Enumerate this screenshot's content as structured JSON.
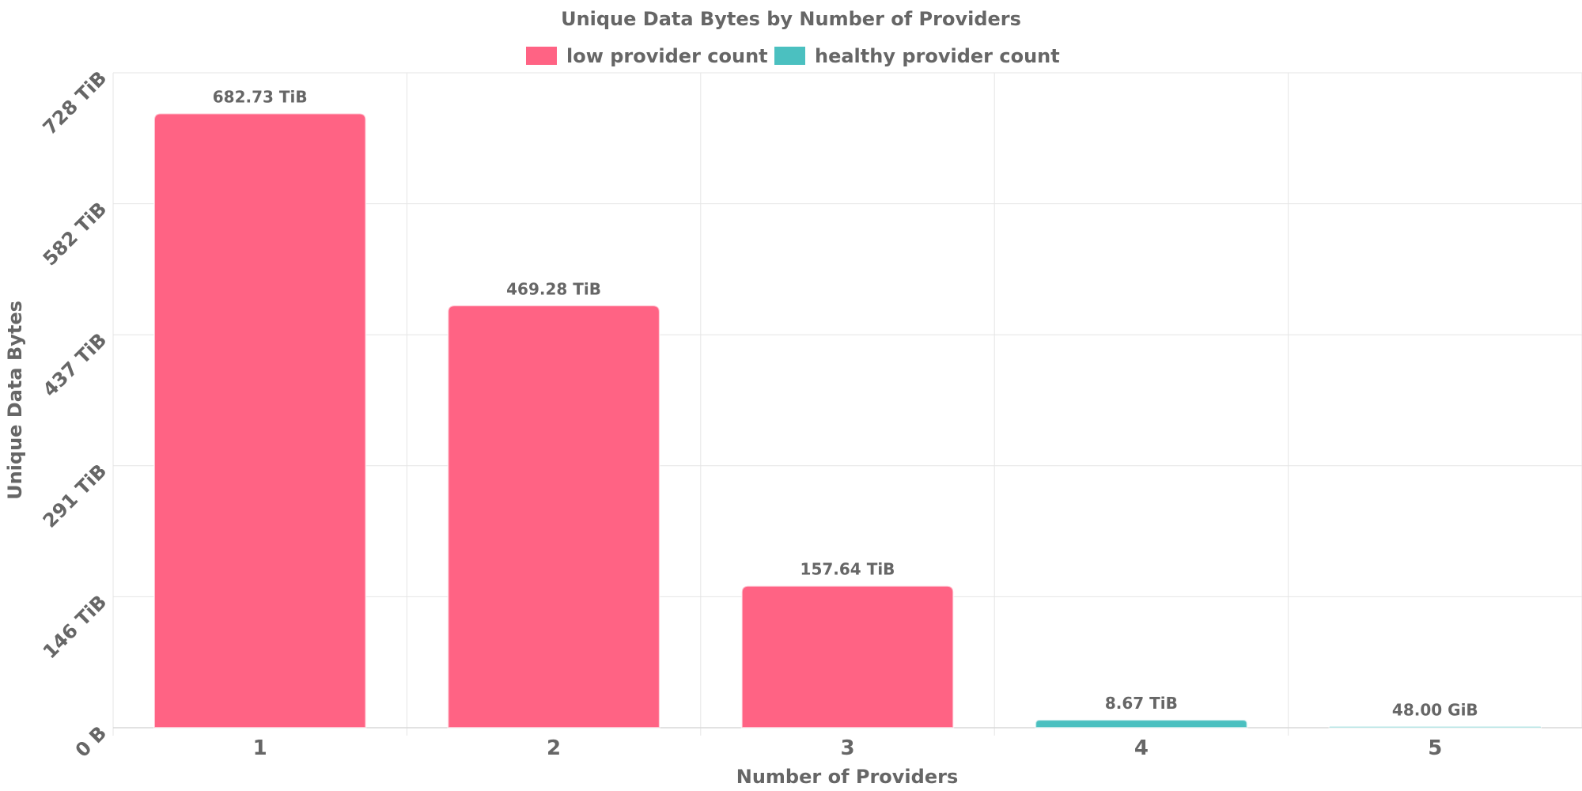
{
  "chart_data": {
    "type": "bar",
    "title": "Unique Data Bytes by Number of Providers",
    "xlabel": "Number of Providers",
    "ylabel": "Unique Data Bytes",
    "categories": [
      "1",
      "2",
      "3",
      "4",
      "5"
    ],
    "values_tib": [
      682.73,
      469.28,
      157.64,
      8.67,
      0.046875
    ],
    "data_labels": [
      "682.73 TiB",
      "469.28 TiB",
      "157.64 TiB",
      "8.67 TiB",
      "48.00 GiB"
    ],
    "series_assignment": [
      "low provider count",
      "low provider count",
      "low provider count",
      "healthy provider count",
      "healthy provider count"
    ],
    "series": [
      {
        "name": "low provider count",
        "color": "#ff6384"
      },
      {
        "name": "healthy provider count",
        "color": "#4bc0c0"
      }
    ],
    "y_ticks": [
      {
        "value": 0,
        "label": "0 B"
      },
      {
        "value": 145.6,
        "label": "146 TiB"
      },
      {
        "value": 291.2,
        "label": "291 TiB"
      },
      {
        "value": 436.8,
        "label": "437 TiB"
      },
      {
        "value": 582.4,
        "label": "582 TiB"
      },
      {
        "value": 728,
        "label": "728 TiB"
      }
    ],
    "ylim": [
      0,
      728
    ],
    "grid": true,
    "legend_position": "top-center"
  }
}
